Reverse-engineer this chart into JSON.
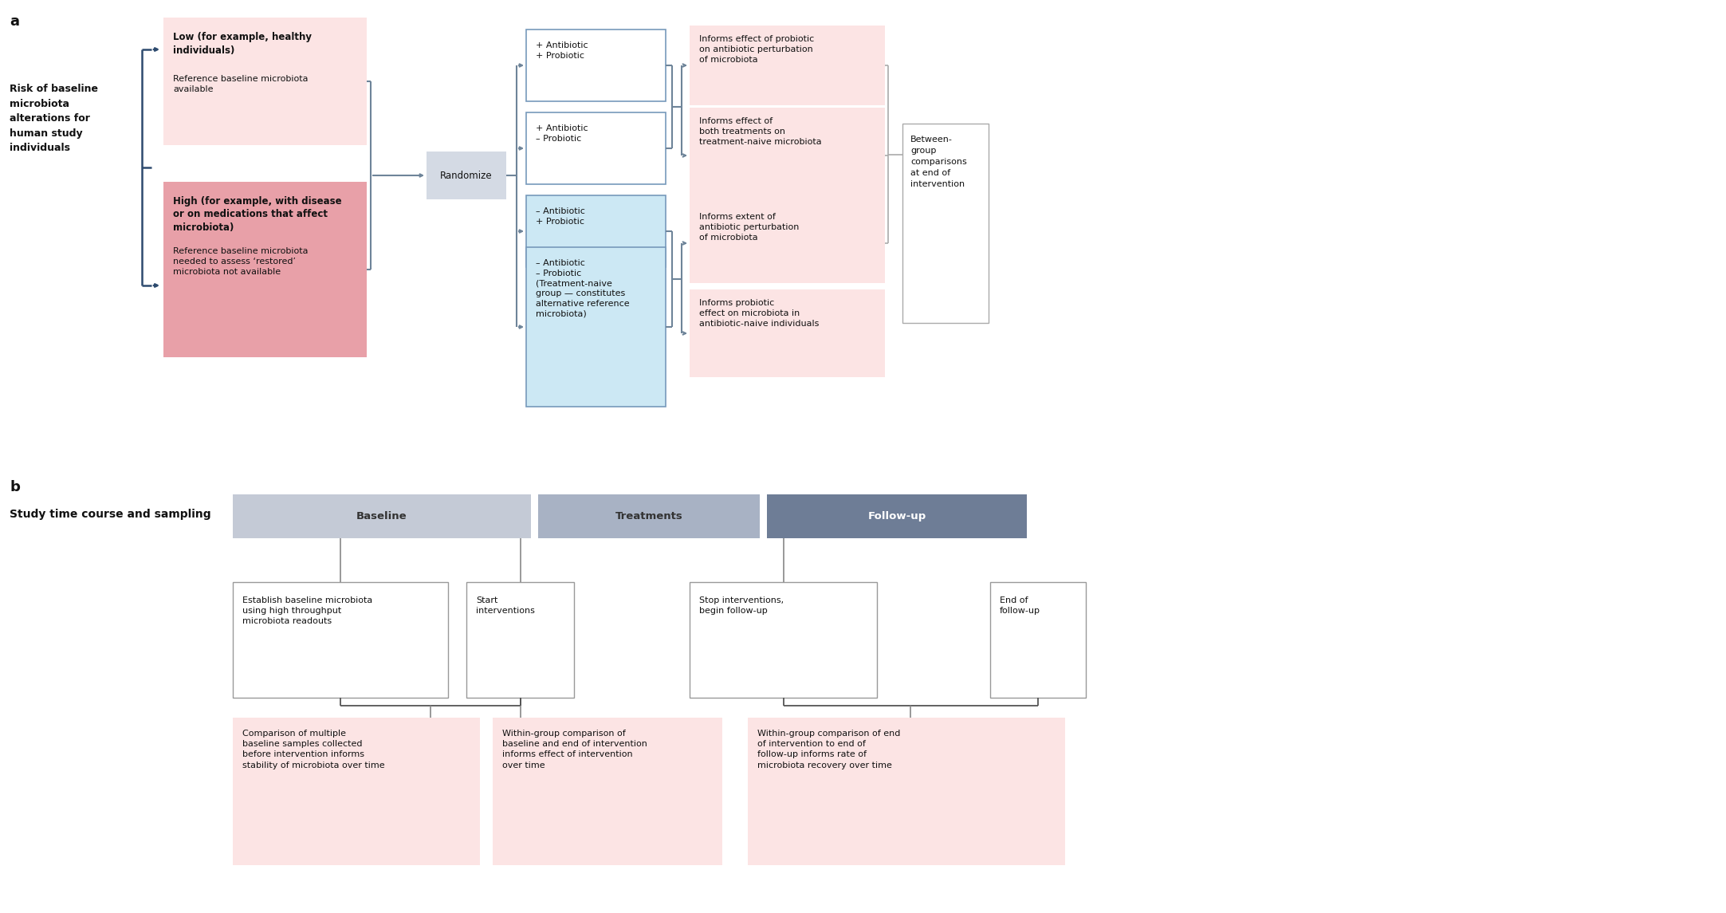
{
  "fig_width": 21.65,
  "fig_height": 11.45,
  "bg_color": "#ffffff",
  "panel_a_label": "a",
  "panel_b_label": "b",
  "left_label": "Risk of baseline\nmicrobiota\nalterations for\nhuman study\nindividuals",
  "box_low_title": "Low (for example, healthy\nindividuals)",
  "box_low_body": "Reference baseline microbiota\navailable",
  "box_low_color": "#fce4e4",
  "box_high_title": "High (for example, with disease\nor on medications that affect\nmicrobiota)",
  "box_high_body": "Reference baseline microbiota\nneeded to assess ‘restored’\nmicrobiota not available",
  "box_high_color": "#e8a0a8",
  "randomize_label": "Randomize",
  "randomize_color": "#d4dae4",
  "treatment_boxes": [
    {
      "label": "+ Antibiotic\n+ Probiotic",
      "color": "#ffffff",
      "border": "#7799bb"
    },
    {
      "label": "+ Antibiotic\n– Probiotic",
      "color": "#ffffff",
      "border": "#7799bb"
    },
    {
      "label": "– Antibiotic\n+ Probiotic",
      "color": "#cce8f4",
      "border": "#7799bb"
    },
    {
      "label": "– Antibiotic\n– Probiotic\n(Treatment-naive\ngroup — constitutes\nalternative reference\nmicrobiota)",
      "color": "#cce8f4",
      "border": "#7799bb"
    }
  ],
  "outcome_boxes": [
    {
      "label": "Informs effect of probiotic\non antibiotic perturbation\nof microbiota",
      "color": "#fce4e4"
    },
    {
      "label": "Informs effect of\nboth treatments on\ntreatment-naive microbiota",
      "color": "#fce4e4"
    },
    {
      "label": "Informs extent of\nantibiotic perturbation\nof microbiota",
      "color": "#fce4e4"
    },
    {
      "label": "Informs probiotic\neffect on microbiota in\nantibiotic-naive individuals",
      "color": "#fce4e4"
    }
  ],
  "between_group_label": "Between-\ngroup\ncomparisons\nat end of\nintervention",
  "panel_b_title": "Study time course and sampling",
  "phase_headers": [
    "Baseline",
    "Treatments",
    "Follow-up"
  ],
  "phase_colors": [
    "#c4cad6",
    "#a8b2c4",
    "#6e7d96"
  ],
  "timeline_boxes": [
    {
      "label": "Establish baseline microbiota\nusing high throughput\nmicrobiota readouts",
      "color": "#ffffff",
      "border": "#999999"
    },
    {
      "label": "Start\ninterventions",
      "color": "#ffffff",
      "border": "#999999"
    },
    {
      "label": "Stop interventions,\nbegin follow-up",
      "color": "#ffffff",
      "border": "#999999"
    },
    {
      "label": "End of\nfollow-up",
      "color": "#ffffff",
      "border": "#999999"
    }
  ],
  "bottom_boxes": [
    {
      "label": "Comparison of multiple\nbaseline samples collected\nbefore intervention informs\nstability of microbiota over time",
      "color": "#fce4e4"
    },
    {
      "label": "Within-group comparison of\nbaseline and end of intervention\ninforms effect of intervention\nover time",
      "color": "#fce4e4"
    },
    {
      "label": "Within-group comparison of end\nof intervention to end of\nfollow-up informs rate of\nmicrobiota recovery over time",
      "color": "#fce4e4"
    }
  ],
  "arrow_color": "#2d4a6e",
  "connector_color": "#6e8499"
}
